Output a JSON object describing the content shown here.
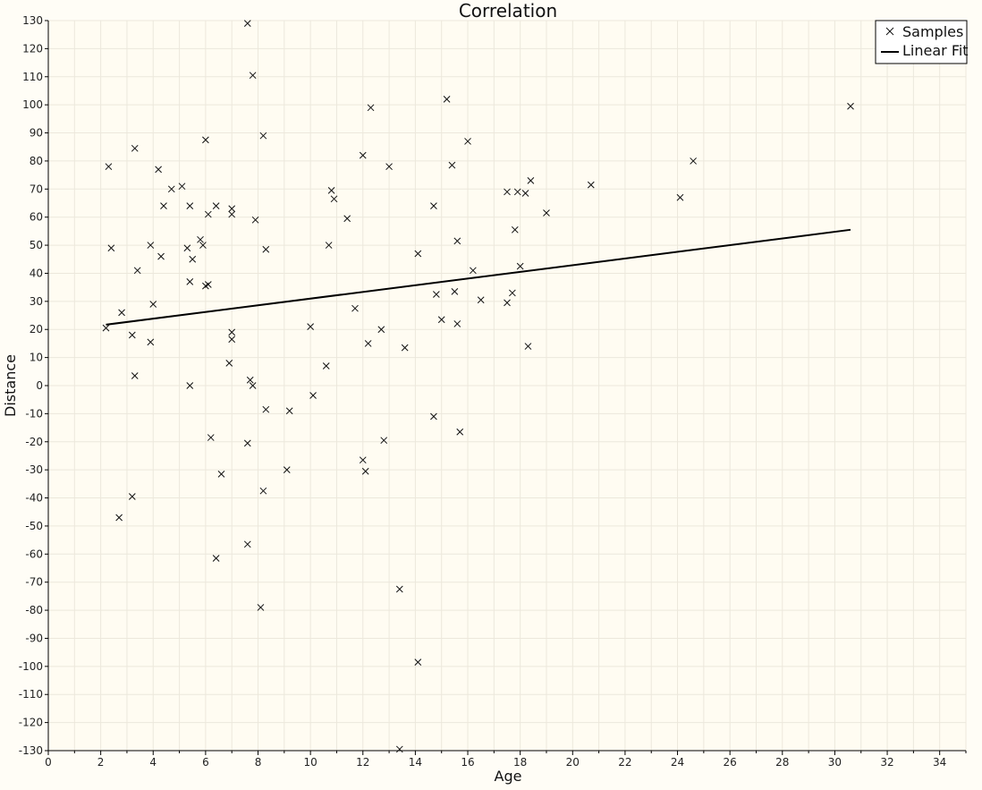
{
  "chart_data": {
    "type": "scatter",
    "title": "Correlation",
    "xlabel": "Age",
    "ylabel": "Distance",
    "xlim": [
      0,
      35
    ],
    "ylim": [
      -130,
      130
    ],
    "x_ticks": [
      0,
      2,
      4,
      6,
      8,
      10,
      12,
      14,
      16,
      18,
      20,
      22,
      24,
      26,
      28,
      30,
      32,
      34
    ],
    "y_ticks": [
      -130,
      -120,
      -110,
      -100,
      -90,
      -80,
      -70,
      -60,
      -50,
      -40,
      -30,
      -20,
      -10,
      0,
      10,
      20,
      30,
      40,
      50,
      60,
      70,
      80,
      90,
      100,
      110,
      120,
      130
    ],
    "grid": true,
    "legend": {
      "placement": "top-right",
      "entries": [
        "Samples",
        "Linear Fit"
      ]
    },
    "series": [
      {
        "name": "Samples",
        "kind": "scatter",
        "marker": "x",
        "x": [
          7.6,
          7.8,
          15.2,
          12.3,
          30.6,
          8.2,
          6.0,
          16.0,
          3.3,
          12.0,
          2.3,
          24.6,
          4.2,
          13.0,
          15.4,
          18.4,
          5.1,
          4.7,
          20.7,
          17.5,
          17.9,
          18.2,
          10.8,
          24.1,
          10.9,
          4.4,
          5.4,
          7.0,
          14.7,
          6.4,
          6.1,
          7.0,
          11.4,
          19.0,
          7.9,
          2.4,
          8.3,
          17.8,
          15.6,
          5.8,
          3.9,
          5.3,
          10.7,
          5.9,
          4.3,
          5.5,
          14.1,
          18.0,
          3.4,
          16.2,
          5.4,
          6.0,
          6.1,
          15.5,
          14.8,
          17.7,
          16.5,
          4.0,
          17.5,
          11.7,
          2.8,
          15.0,
          15.6,
          2.2,
          10.0,
          12.7,
          7.0,
          3.2,
          7.0,
          3.9,
          12.2,
          13.6,
          18.3,
          6.9,
          10.6,
          3.3,
          7.7,
          5.4,
          7.8,
          10.1,
          8.3,
          9.2,
          14.7,
          15.7,
          12.8,
          6.2,
          7.6,
          12.0,
          9.1,
          12.1,
          6.6,
          8.2,
          3.2,
          2.7,
          7.6,
          6.4,
          13.4,
          8.1,
          14.1,
          13.4
        ],
        "y": [
          129,
          110.5,
          102,
          99,
          99.5,
          89,
          87.5,
          87,
          84.5,
          82,
          78,
          80,
          77,
          78,
          78.5,
          73,
          71,
          70,
          71.5,
          69,
          69,
          68.5,
          69.5,
          67,
          66.5,
          64,
          64,
          63,
          64,
          64,
          61,
          61,
          59.5,
          61.5,
          59,
          49,
          48.5,
          55.5,
          51.5,
          52,
          50,
          49,
          50,
          50,
          46,
          45,
          47,
          42.5,
          41,
          41,
          37,
          35.5,
          36,
          33.5,
          32.5,
          33,
          30.5,
          29,
          29.5,
          27.5,
          26,
          23.5,
          22,
          20.5,
          21,
          20,
          19,
          18,
          16.5,
          15.5,
          15,
          13.5,
          14,
          8,
          7,
          3.5,
          2,
          0,
          0,
          -3.5,
          -8.5,
          -9,
          -11,
          -16.5,
          -19.5,
          -18.5,
          -20.5,
          -26.5,
          -30,
          -30.5,
          -31.5,
          -37.5,
          -39.5,
          -47,
          -56.5,
          -61.5,
          -72.5,
          -79,
          -98.5,
          -129.5
        ]
      },
      {
        "name": "Linear Fit",
        "kind": "line",
        "x": [
          2.2,
          30.6
        ],
        "y": [
          21.7,
          55.5
        ]
      }
    ]
  }
}
